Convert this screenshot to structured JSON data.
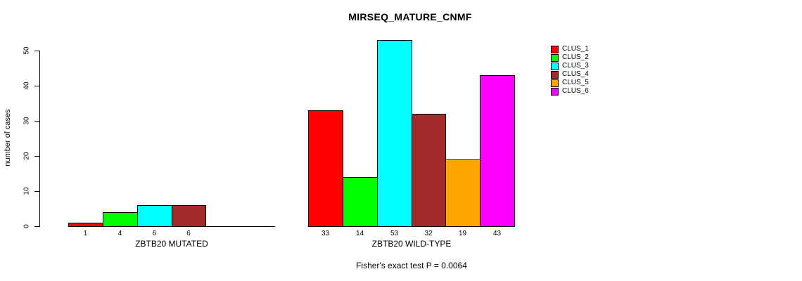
{
  "title": "MIRSEQ_MATURE_CNMF",
  "chart_data": {
    "type": "bar",
    "title": "MIRSEQ_MATURE_CNMF",
    "xlabel": "",
    "ylabel": "number of cases",
    "ylim": [
      0,
      50
    ],
    "yticks": [
      0,
      10,
      20,
      30,
      40,
      50
    ],
    "grid": false,
    "legend_position": "right",
    "legend": [
      {
        "label": "CLUS_1",
        "color": "#FF0000"
      },
      {
        "label": "CLUS_2",
        "color": "#00FF00"
      },
      {
        "label": "CLUS_3",
        "color": "#00FFFF"
      },
      {
        "label": "CLUS_4",
        "color": "#A52A2A"
      },
      {
        "label": "CLUS_5",
        "color": "#FFA500"
      },
      {
        "label": "CLUS_6",
        "color": "#FF00FF"
      }
    ],
    "groups": [
      {
        "label": "ZBTB20 MUTATED",
        "values": [
          1,
          4,
          6,
          6,
          0,
          0
        ],
        "bar_labels": [
          "1",
          "4",
          "6",
          "6",
          "",
          ""
        ]
      },
      {
        "label": "ZBTB20 WILD-TYPE",
        "values": [
          33,
          14,
          53,
          32,
          19,
          43
        ],
        "bar_labels": [
          "33",
          "14",
          "53",
          "32",
          "19",
          "43"
        ]
      }
    ],
    "annotation": "Fisher's exact test P = 0.0064"
  }
}
